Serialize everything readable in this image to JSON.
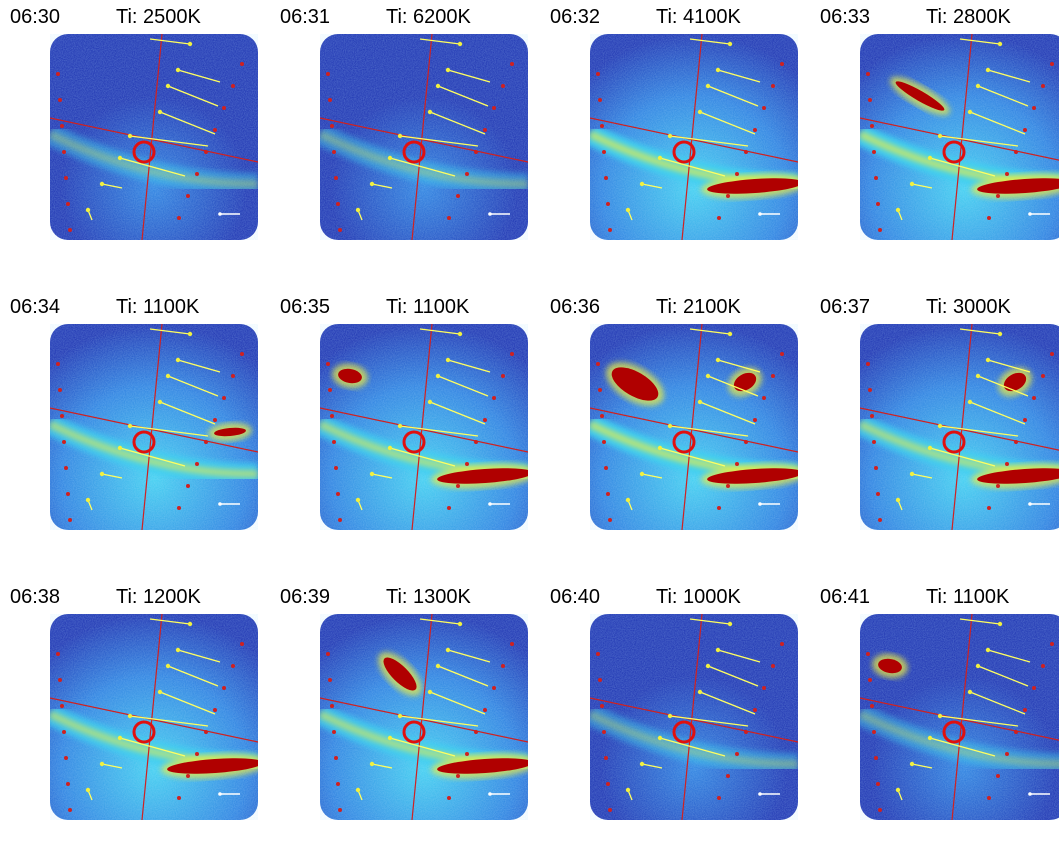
{
  "panels": [
    {
      "time": "06:30",
      "temp": "Ti: 2500K",
      "intensity": 0.15,
      "blobs": [],
      "arc": "faint"
    },
    {
      "time": "06:31",
      "temp": "Ti: 6200K",
      "intensity": 0.1,
      "blobs": [],
      "arc": "faint"
    },
    {
      "time": "06:32",
      "temp": "Ti: 4100K",
      "intensity": 0.55,
      "blobs": [
        "lower-right-band"
      ],
      "arc": "strong"
    },
    {
      "time": "06:33",
      "temp": "Ti: 2800K",
      "intensity": 0.5,
      "blobs": [
        "lower-right-band",
        "upper-left-streak"
      ],
      "arc": "strong"
    },
    {
      "time": "06:34",
      "temp": "Ti: 1100K",
      "intensity": 0.5,
      "blobs": [
        "mid-right-patch"
      ],
      "arc": "medium"
    },
    {
      "time": "06:35",
      "temp": "Ti: 1100K",
      "intensity": 0.45,
      "blobs": [
        "lower-right-band",
        "upper-left-patch"
      ],
      "arc": "medium"
    },
    {
      "time": "06:36",
      "temp": "Ti: 2100K",
      "intensity": 0.6,
      "blobs": [
        "upper-left-large",
        "upper-right-patch",
        "lower-right-band"
      ],
      "arc": "strong"
    },
    {
      "time": "06:37",
      "temp": "Ti: 3000K",
      "intensity": 0.55,
      "blobs": [
        "upper-right-patch",
        "lower-right-band"
      ],
      "arc": "medium"
    },
    {
      "time": "06:38",
      "temp": "Ti: 1200K",
      "intensity": 0.5,
      "blobs": [
        "lower-right-band"
      ],
      "arc": "medium"
    },
    {
      "time": "06:39",
      "temp": "Ti: 1300K",
      "intensity": 0.45,
      "blobs": [
        "upper-center-streak",
        "lower-right-band"
      ],
      "arc": "medium"
    },
    {
      "time": "06:40",
      "temp": "Ti: 1000K",
      "intensity": 0.35,
      "blobs": [],
      "arc": "faint"
    },
    {
      "time": "06:41",
      "temp": "Ti: 1100K",
      "intensity": 0.4,
      "blobs": [
        "upper-left-patch"
      ],
      "arc": "faint"
    }
  ],
  "colors": {
    "background_dark": "#1a2fb0",
    "background_mid": "#2a7fe0",
    "cyan": "#40d0f0",
    "yellow": "#f0f040",
    "hot": "#b00000",
    "grid_line": "#d02020",
    "marker_circle": "#e01010",
    "vector_line": "#ffff60",
    "scale_bar": "#ffffff"
  }
}
